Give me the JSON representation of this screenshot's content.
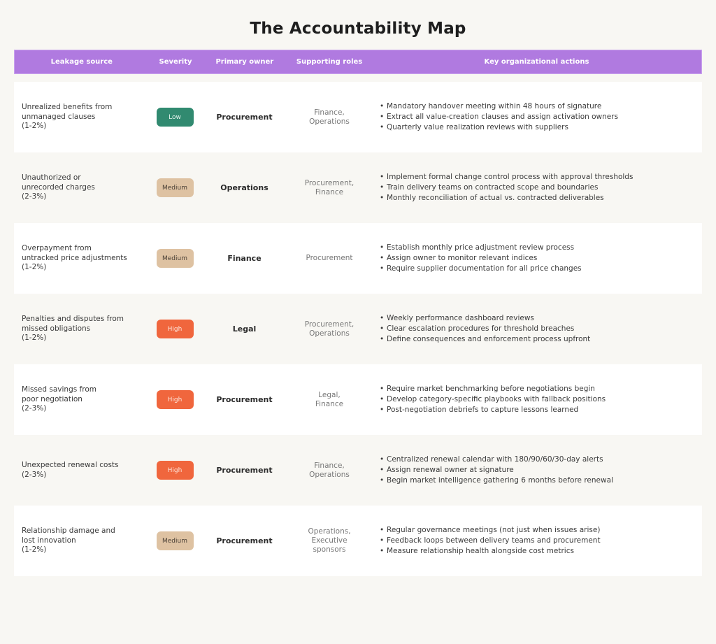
{
  "title": "The Accountability Map",
  "colors": {
    "page_background": "#f8f7f3",
    "header_background": "#b07ae0",
    "severity_low": "#318a70",
    "severity_medium": "#dec2a2",
    "severity_high": "#f0663d"
  },
  "table": {
    "headers": {
      "source": "Leakage source",
      "severity": "Severity",
      "owner": "Primary owner",
      "roles": "Supporting roles",
      "actions": "Key organizational actions"
    },
    "rows": [
      {
        "source": [
          "Unrealized benefits from",
          "unmanaged clauses",
          "(1-2%)"
        ],
        "severity": "Low",
        "owner": "Procurement",
        "roles": [
          "Finance,",
          "Operations"
        ],
        "actions": [
          "Mandatory handover meeting within 48 hours of signature",
          "Extract all value-creation clauses and assign activation owners",
          "Quarterly value realization reviews with suppliers"
        ]
      },
      {
        "source": [
          "Unauthorized or",
          "unrecorded charges",
          "(2-3%)"
        ],
        "severity": "Medium",
        "owner": "Operations",
        "roles": [
          "Procurement,",
          "Finance"
        ],
        "actions": [
          "Implement formal change control process with approval thresholds",
          "Train delivery teams on contracted scope and boundaries",
          "Monthly reconciliation of actual vs. contracted deliverables"
        ]
      },
      {
        "source": [
          "Overpayment from",
          "untracked price adjustments",
          "(1-2%)"
        ],
        "severity": "Medium",
        "owner": "Finance",
        "roles": [
          "Procurement"
        ],
        "actions": [
          "Establish monthly price adjustment review process",
          "Assign owner to monitor relevant indices",
          "Require supplier documentation for all price changes"
        ]
      },
      {
        "source": [
          "Penalties and disputes from",
          "missed obligations",
          "(1-2%)"
        ],
        "severity": "High",
        "owner": "Legal",
        "roles": [
          "Procurement,",
          "Operations"
        ],
        "actions": [
          "Weekly performance dashboard reviews",
          "Clear escalation procedures for threshold breaches",
          "Define consequences and enforcement process upfront"
        ]
      },
      {
        "source": [
          "Missed savings from",
          "poor negotiation",
          "(2-3%)"
        ],
        "severity": "High",
        "owner": "Procurement",
        "roles": [
          "Legal,",
          "Finance"
        ],
        "actions": [
          "Require market benchmarking before negotiations begin",
          "Develop category-specific playbooks with fallback positions",
          "Post-negotiation debriefs to capture lessons learned"
        ]
      },
      {
        "source": [
          "Unexpected renewal costs",
          "(2-3%)"
        ],
        "severity": "High",
        "owner": "Procurement",
        "roles": [
          "Finance,",
          "Operations"
        ],
        "actions": [
          "Centralized renewal calendar with 180/90/60/30-day alerts",
          "Assign renewal owner at signature",
          "Begin market intelligence gathering 6 months before renewal"
        ]
      },
      {
        "source": [
          "Relationship damage and",
          "lost innovation",
          "(1-2%)"
        ],
        "severity": "Medium",
        "owner": "Procurement",
        "roles": [
          "Operations,",
          "Executive",
          "sponsors"
        ],
        "actions": [
          "Regular governance meetings (not just when issues arise)",
          "Feedback loops between delivery teams and procurement",
          "Measure relationship health alongside cost metrics"
        ]
      }
    ]
  }
}
